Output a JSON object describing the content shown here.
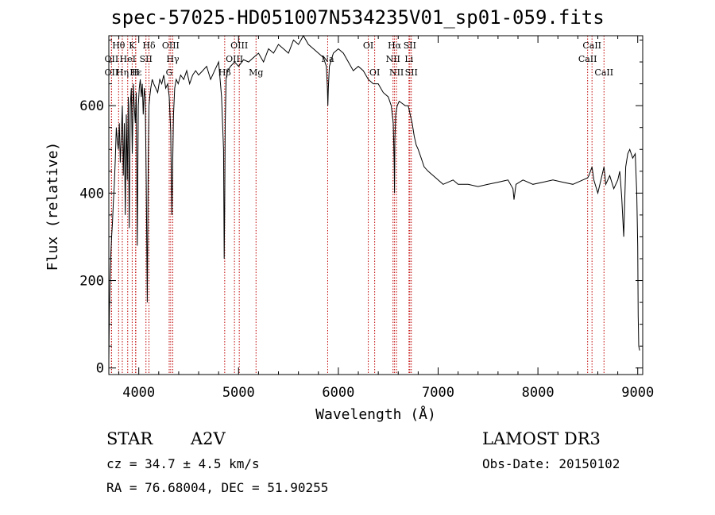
{
  "chart_data": {
    "type": "line",
    "title": "spec-57025-HD051007N534235V01_sp01-059.fits",
    "xlabel": "Wavelength (Å)",
    "ylabel": "Flux (relative)",
    "xlim": [
      3700,
      9050
    ],
    "ylim": [
      -15,
      760
    ],
    "xticks": [
      4000,
      5000,
      6000,
      7000,
      8000,
      9000
    ],
    "yticks": [
      0,
      200,
      400,
      600
    ],
    "series": [
      {
        "name": "spectrum",
        "x": [
          3700,
          3705,
          3712,
          3720,
          3728,
          3736,
          3745,
          3755,
          3765,
          3775,
          3785,
          3795,
          3805,
          3815,
          3825,
          3835,
          3845,
          3855,
          3865,
          3875,
          3885,
          3895,
          3905,
          3915,
          3925,
          3935,
          3945,
          3955,
          3965,
          3975,
          3985,
          3995,
          4005,
          4015,
          4025,
          4035,
          4045,
          4055,
          4065,
          4075,
          4085,
          4095,
          4102,
          4110,
          4120,
          4135,
          4150,
          4170,
          4190,
          4210,
          4230,
          4250,
          4270,
          4290,
          4305,
          4320,
          4332,
          4340,
          4348,
          4360,
          4375,
          4395,
          4420,
          4450,
          4480,
          4510,
          4540,
          4570,
          4600,
          4640,
          4680,
          4720,
          4760,
          4800,
          4830,
          4850,
          4856,
          4861,
          4866,
          4875,
          4890,
          4920,
          4960,
          5000,
          5050,
          5100,
          5150,
          5200,
          5250,
          5300,
          5350,
          5400,
          5450,
          5500,
          5550,
          5600,
          5650,
          5700,
          5750,
          5800,
          5850,
          5880,
          5890,
          5895,
          5900,
          5910,
          5950,
          6000,
          6050,
          6100,
          6150,
          6200,
          6250,
          6300,
          6350,
          6400,
          6450,
          6500,
          6530,
          6550,
          6560,
          6563,
          6566,
          6575,
          6590,
          6610,
          6640,
          6670,
          6700,
          6720,
          6740,
          6760,
          6780,
          6800,
          6830,
          6860,
          6900,
          6950,
          7000,
          7050,
          7100,
          7150,
          7200,
          7300,
          7400,
          7500,
          7600,
          7700,
          7750,
          7760,
          7780,
          7850,
          7950,
          8050,
          8150,
          8250,
          8350,
          8450,
          8498,
          8510,
          8542,
          8560,
          8600,
          8662,
          8680,
          8720,
          8760,
          8800,
          8820,
          8830,
          8840,
          8860,
          8880,
          8900,
          8920,
          8950,
          8975,
          8990,
          9000,
          9005,
          9010,
          9020
        ],
        "values": [
          20,
          120,
          200,
          260,
          300,
          330,
          380,
          420,
          480,
          550,
          520,
          500,
          560,
          470,
          530,
          600,
          440,
          560,
          350,
          580,
          430,
          620,
          320,
          600,
          640,
          490,
          650,
          600,
          560,
          630,
          280,
          600,
          640,
          660,
          620,
          650,
          580,
          640,
          620,
          420,
          150,
          480,
          600,
          620,
          640,
          660,
          650,
          640,
          630,
          660,
          650,
          670,
          640,
          650,
          620,
          540,
          350,
          470,
          580,
          640,
          660,
          650,
          670,
          660,
          680,
          650,
          670,
          680,
          670,
          680,
          690,
          660,
          680,
          700,
          620,
          500,
          250,
          360,
          560,
          660,
          680,
          690,
          700,
          690,
          705,
          700,
          710,
          720,
          700,
          730,
          720,
          740,
          730,
          720,
          750,
          740,
          760,
          740,
          730,
          720,
          710,
          690,
          640,
          600,
          640,
          690,
          720,
          730,
          720,
          700,
          680,
          690,
          680,
          660,
          650,
          650,
          630,
          620,
          600,
          560,
          470,
          400,
          520,
          580,
          600,
          610,
          605,
          600,
          600,
          580,
          560,
          530,
          510,
          500,
          480,
          460,
          450,
          440,
          430,
          420,
          425,
          430,
          420,
          420,
          415,
          420,
          425,
          430,
          410,
          385,
          420,
          430,
          420,
          425,
          430,
          425,
          420,
          430,
          435,
          440,
          460,
          430,
          400,
          460,
          420,
          440,
          410,
          430,
          450,
          420,
          390,
          300,
          460,
          490,
          500,
          480,
          490,
          400,
          280,
          120,
          50,
          40
        ]
      }
    ],
    "lines": [
      {
        "name": "OII",
        "wl": 3727,
        "row": 2
      },
      {
        "name": "OII",
        "wl": 3727,
        "row": 3
      },
      {
        "name": "Hθ",
        "wl": 3798,
        "row": 1
      },
      {
        "name": "Hη",
        "wl": 3835,
        "row": 3
      },
      {
        "name": "HeI",
        "wl": 3889,
        "row": 2
      },
      {
        "name": "K",
        "wl": 3934,
        "row": 1
      },
      {
        "name": "H",
        "wl": 3968,
        "row": 3
      },
      {
        "name": "Hε",
        "wl": 3970,
        "row": 3
      },
      {
        "name": "SII",
        "wl": 4072,
        "row": 2
      },
      {
        "name": "Hδ",
        "wl": 4102,
        "row": 1
      },
      {
        "name": "OIII",
        "wl": 4320,
        "row": 1
      },
      {
        "name": "Hγ",
        "wl": 4341,
        "row": 2
      },
      {
        "name": "G",
        "wl": 4305,
        "row": 3
      },
      {
        "name": "Hβ",
        "wl": 4861,
        "row": 3
      },
      {
        "name": "OIII",
        "wl": 4959,
        "row": 2
      },
      {
        "name": "OIII",
        "wl": 5007,
        "row": 1
      },
      {
        "name": "Mg",
        "wl": 5175,
        "row": 3
      },
      {
        "name": "Na",
        "wl": 5893,
        "row": 2
      },
      {
        "name": "OI",
        "wl": 6300,
        "row": 1
      },
      {
        "name": "OI",
        "wl": 6364,
        "row": 3
      },
      {
        "name": "Hα",
        "wl": 6563,
        "row": 1
      },
      {
        "name": "NII",
        "wl": 6548,
        "row": 2
      },
      {
        "name": "NII",
        "wl": 6583,
        "row": 3
      },
      {
        "name": "SII",
        "wl": 6716,
        "row": 1
      },
      {
        "name": "SII",
        "wl": 6731,
        "row": 3
      },
      {
        "name": "Li",
        "wl": 6708,
        "row": 2
      },
      {
        "name": "CaII",
        "wl": 8498,
        "row": 2
      },
      {
        "name": "CaII",
        "wl": 8542,
        "row": 1
      },
      {
        "name": "CaII",
        "wl": 8662,
        "row": 3
      }
    ]
  },
  "info": {
    "class": "STAR",
    "subclass": "A2V",
    "survey": "LAMOST DR3",
    "cz": "cz = 34.7 ± 4.5 km/s",
    "obs_date": "Obs-Date: 20150102",
    "radec": "RA =  76.68004, DEC =  51.90255"
  }
}
